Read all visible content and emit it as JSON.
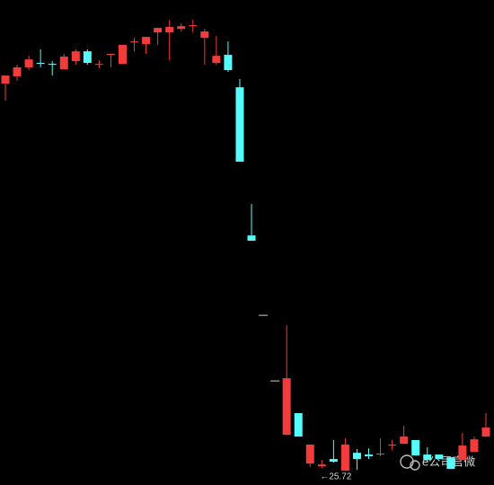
{
  "chart_data": {
    "type": "candlestick",
    "open": [
      45.41,
      45.78,
      46.24,
      46.47,
      46.42,
      46.14,
      46.56,
      47.06,
      46.37,
      46.88,
      46.42,
      47.52,
      47.43,
      48.03,
      48.03,
      48.21,
      48.35,
      47.75,
      46.47,
      46.88,
      45.22,
      37.63,
      33.54,
      30.18,
      27.42,
      28.53,
      25.95,
      25.81,
      26.18,
      25.58,
      26.5,
      26.41,
      26.41,
      26.87,
      26.96,
      27.15,
      26.41,
      26.41,
      26.27,
      26.13,
      26.55,
      27.33
    ],
    "high": [
      45.82,
      46.37,
      46.83,
      47.16,
      46.56,
      46.93,
      47.16,
      47.16,
      46.6,
      46.93,
      47.39,
      47.75,
      47.8,
      48.26,
      48.67,
      48.49,
      48.67,
      48.21,
      47.85,
      47.57,
      45.64,
      39.24,
      33.54,
      30.18,
      33.03,
      28.53,
      26.92,
      26.13,
      27.15,
      27.24,
      26.69,
      26.73,
      27.24,
      27.15,
      27.88,
      27.15,
      26.78,
      26.41,
      26.27,
      27.51,
      27.33,
      28.53
    ],
    "low": [
      44.53,
      45.55,
      46.1,
      46.24,
      45.82,
      46.14,
      46.37,
      46.37,
      46.19,
      46.24,
      46.42,
      47.06,
      46.93,
      47.39,
      46.6,
      48.08,
      48.03,
      46.37,
      46.37,
      46.01,
      41.41,
      37.36,
      33.54,
      30.18,
      27.42,
      27.33,
      25.77,
      25.72,
      26.0,
      25.58,
      25.63,
      26.18,
      26.32,
      26.64,
      26.96,
      26.36,
      26.04,
      26.18,
      25.67,
      26.13,
      26.55,
      27.33
    ],
    "close": [
      45.82,
      46.24,
      46.65,
      46.42,
      46.37,
      46.79,
      47.06,
      46.47,
      46.42,
      46.93,
      47.39,
      47.57,
      47.8,
      48.26,
      48.31,
      48.35,
      48.4,
      48.08,
      46.83,
      46.1,
      41.41,
      37.36,
      33.54,
      30.18,
      30.32,
      27.33,
      26.92,
      25.9,
      26.04,
      26.92,
      26.18,
      26.32,
      26.46,
      26.92,
      27.33,
      26.36,
      26.13,
      26.18,
      25.67,
      26.87,
      27.19,
      27.79
    ],
    "ylim": [
      24.85,
      49.69
    ],
    "up_color": "#f23b3b",
    "down_color": "#54fcfc",
    "flat_color": "#d0d0d0",
    "low_label": {
      "value": 25.72,
      "label": "←25.72"
    }
  },
  "watermark": "e公司官微"
}
